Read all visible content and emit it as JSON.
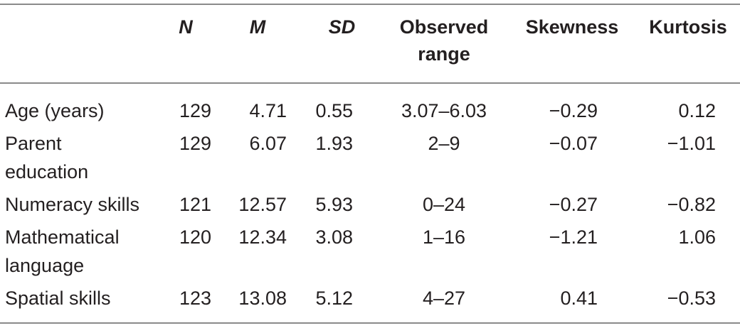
{
  "table": {
    "headers": {
      "variable": "",
      "n": "N",
      "m": "M",
      "sd": "SD",
      "range_line1": "Observed",
      "range_line2": "range",
      "skewness": "Skewness",
      "kurtosis": "Kurtosis"
    },
    "rows": [
      {
        "label_line1": "Age (years)",
        "label_line2": "",
        "n": "129",
        "m": "4.71",
        "sd": "0.55",
        "range": "3.07–6.03",
        "skewness": "−0.29",
        "kurtosis": "0.12"
      },
      {
        "label_line1": "Parent",
        "label_line2": "education",
        "n": "129",
        "m": "6.07",
        "sd": "1.93",
        "range": "2–9",
        "skewness": "−0.07",
        "kurtosis": "−1.01"
      },
      {
        "label_line1": "Numeracy skills",
        "label_line2": "",
        "n": "121",
        "m": "12.57",
        "sd": "5.93",
        "range": "0–24",
        "skewness": "−0.27",
        "kurtosis": "−0.82"
      },
      {
        "label_line1": "Mathematical",
        "label_line2": "language",
        "n": "120",
        "m": "12.34",
        "sd": "3.08",
        "range": "1–16",
        "skewness": "−1.21",
        "kurtosis": "1.06"
      },
      {
        "label_line1": "Spatial skills",
        "label_line2": "",
        "n": "123",
        "m": "13.08",
        "sd": "5.12",
        "range": "4–27",
        "skewness": "0.41",
        "kurtosis": "−0.53"
      }
    ]
  }
}
